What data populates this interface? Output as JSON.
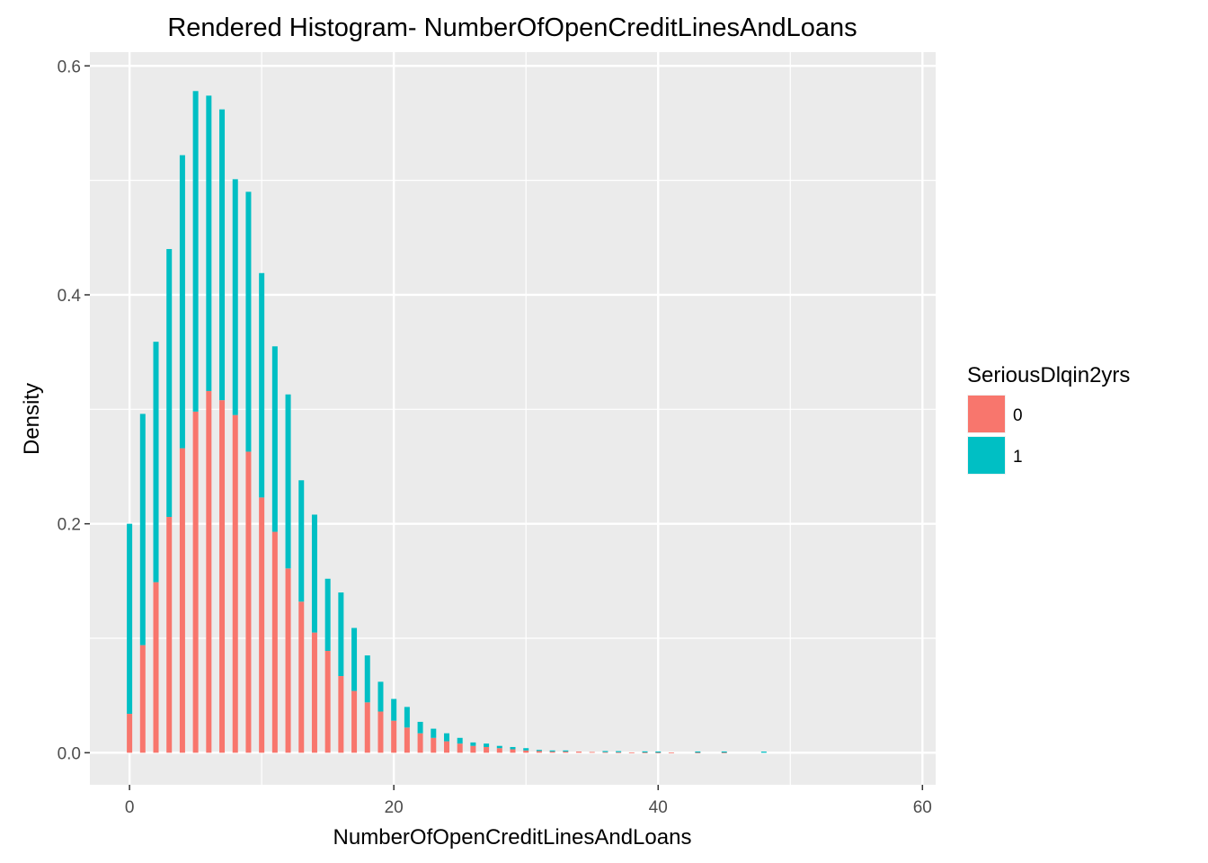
{
  "chart_data": {
    "type": "bar",
    "stacked": true,
    "title": "Rendered Histogram- NumberOfOpenCreditLinesAndLoans",
    "xlabel": "NumberOfOpenCreditLinesAndLoans",
    "ylabel": "Density",
    "xlim": [
      -3,
      61
    ],
    "ylim": [
      -0.028,
      0.612
    ],
    "x_ticks": [
      0,
      20,
      40,
      60
    ],
    "y_ticks": [
      0.0,
      0.2,
      0.4,
      0.6
    ],
    "x_tick_labels": [
      "0",
      "20",
      "40",
      "60"
    ],
    "y_tick_labels": [
      "0.0",
      "0.2",
      "0.4",
      "0.6"
    ],
    "grid": true,
    "legend": {
      "title": "SeriousDlqin2yrs",
      "position": "right",
      "entries": [
        {
          "label": "0",
          "color": "#F8766D"
        },
        {
          "label": "1",
          "color": "#00BFC4"
        }
      ]
    },
    "x": [
      0,
      1,
      2,
      3,
      4,
      5,
      6,
      7,
      8,
      9,
      10,
      11,
      12,
      13,
      14,
      15,
      16,
      17,
      18,
      19,
      20,
      21,
      22,
      23,
      24,
      25,
      26,
      27,
      28,
      29,
      30,
      31,
      32,
      33,
      34,
      35,
      36,
      37,
      38,
      39,
      40,
      41,
      42,
      43,
      44,
      45,
      46,
      47,
      48
    ],
    "series": [
      {
        "name": "0",
        "color": "#F8766D",
        "values": [
          0.034,
          0.094,
          0.149,
          0.206,
          0.266,
          0.298,
          0.316,
          0.308,
          0.295,
          0.263,
          0.223,
          0.193,
          0.161,
          0.132,
          0.105,
          0.089,
          0.067,
          0.054,
          0.044,
          0.036,
          0.028,
          0.022,
          0.017,
          0.013,
          0.01,
          0.008,
          0.006,
          0.005,
          0.004,
          0.003,
          0.002,
          0.0015,
          0.001,
          0.001,
          0.001,
          0.0007,
          0.0005,
          0.0004,
          0.0003,
          0.0002,
          0.0001,
          0.0001,
          0,
          0.0001,
          0,
          0.0001,
          0,
          0,
          0
        ]
      },
      {
        "name": "1",
        "color": "#00BFC4",
        "values": [
          0.166,
          0.202,
          0.21,
          0.234,
          0.256,
          0.28,
          0.258,
          0.254,
          0.206,
          0.227,
          0.196,
          0.162,
          0.152,
          0.106,
          0.103,
          0.063,
          0.073,
          0.055,
          0.041,
          0.026,
          0.019,
          0.018,
          0.01,
          0.008,
          0.007,
          0.005,
          0.003,
          0.003,
          0.002,
          0.002,
          0.002,
          0.001,
          0.001,
          0.001,
          0,
          0,
          0.001,
          0.001,
          0,
          0.001,
          0.001,
          0,
          0,
          0.001,
          0,
          0.001,
          0,
          0,
          0.001
        ]
      }
    ]
  }
}
